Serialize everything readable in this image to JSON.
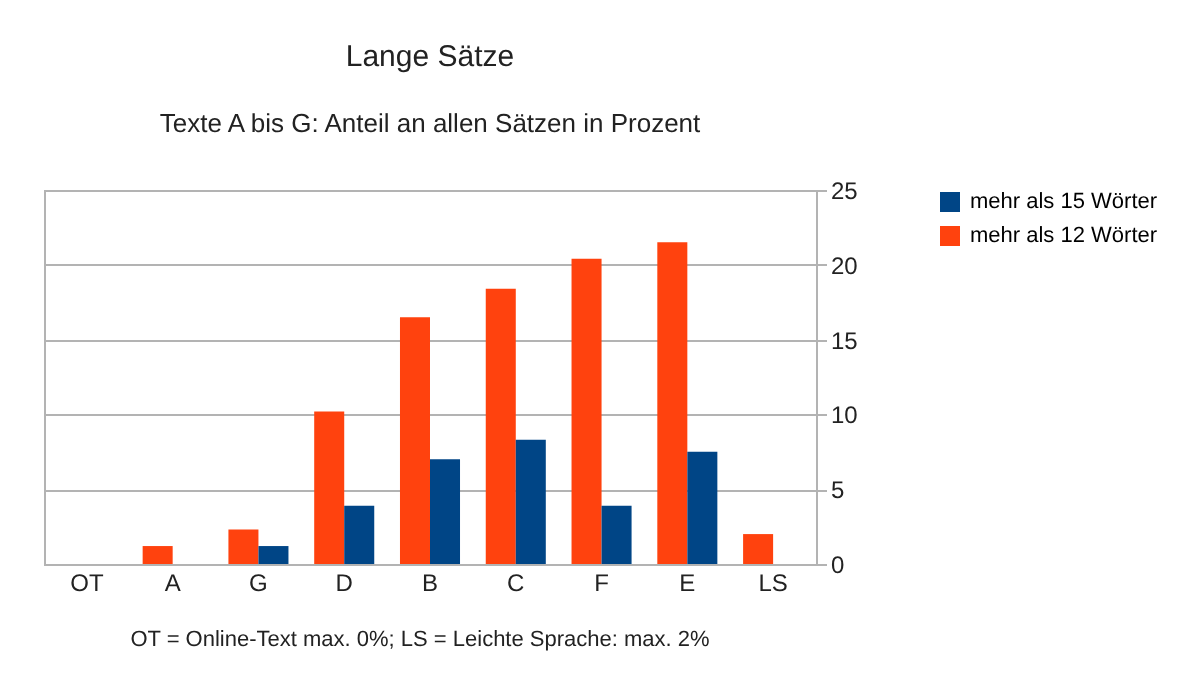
{
  "chart_data": {
    "type": "bar",
    "title": "Lange Sätze",
    "subtitle": "Texte A bis G: Anteil an allen Sätzen in Prozent",
    "categories": [
      "OT",
      "A",
      "G",
      "D",
      "B",
      "C",
      "F",
      "E",
      "LS"
    ],
    "series": [
      {
        "name": "mehr als 12 Wörter",
        "color": "#ff420e",
        "values": [
          0,
          1.2,
          2.3,
          10.2,
          16.5,
          18.4,
          20.4,
          21.5,
          2.0
        ]
      },
      {
        "name": "mehr als 15 Wörter",
        "color": "#004586",
        "values": [
          0,
          0,
          1.2,
          3.9,
          7.0,
          8.3,
          3.9,
          7.5,
          0
        ]
      }
    ],
    "ylim": [
      0,
      25
    ],
    "yticks": [
      0,
      5,
      10,
      15,
      20,
      25
    ],
    "grid": "y",
    "legend": "right",
    "annotations": [
      "OT = Online-Text max. 0%;  LS = Leichte Sprache: max. 2%"
    ]
  }
}
